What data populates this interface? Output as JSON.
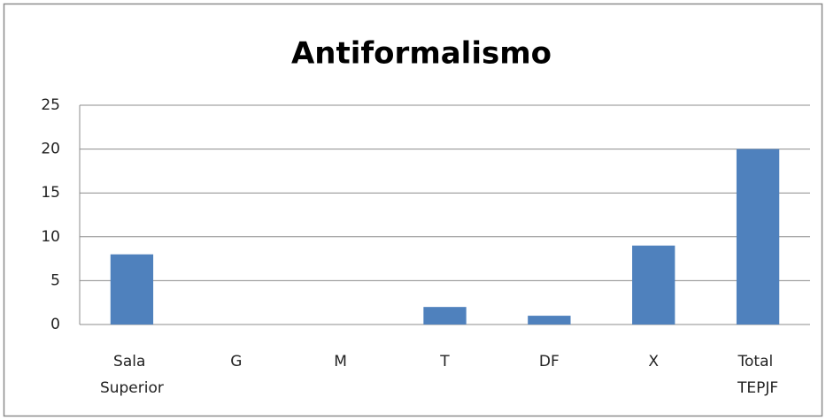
{
  "chart_data": {
    "type": "bar",
    "title": "Antiformalismo",
    "categories": [
      "Sala Superior",
      "G",
      "M",
      "T",
      "DF",
      "X",
      "Total TEPJF"
    ],
    "values": [
      8,
      0,
      0,
      2,
      1,
      9,
      20
    ],
    "color": "#4f81bd",
    "ylim": [
      0,
      25
    ],
    "yticks": [
      0,
      5,
      10,
      15,
      20,
      25
    ],
    "grid": true
  }
}
